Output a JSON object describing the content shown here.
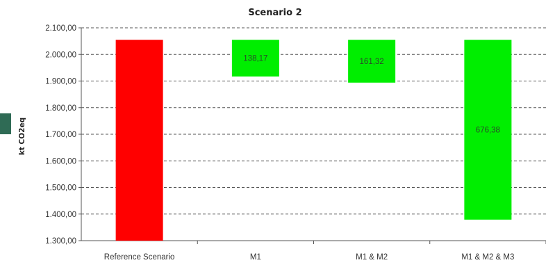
{
  "chart_data": {
    "type": "bar",
    "title": "Scenario 2",
    "ylabel": "kt CO2eq",
    "xlabel": "",
    "ylim": [
      1300,
      2100
    ],
    "yticks": [
      "1.300,00",
      "1.400,00",
      "1.500,00",
      "1.600,00",
      "1.700,00",
      "1.800,00",
      "1.900,00",
      "2.000,00",
      "2.100,00"
    ],
    "ytick_values": [
      1300,
      1400,
      1500,
      1600,
      1700,
      1800,
      1900,
      2000,
      2100
    ],
    "grid": true,
    "categories": [
      "Reference Scenario",
      "M1",
      "M1 & M2",
      "M1 & M2 & M3"
    ],
    "bars": [
      {
        "bottom": 1300,
        "top": 2055,
        "color": "#ff0000",
        "label": ""
      },
      {
        "bottom": 1917,
        "top": 2055,
        "color": "#00ee00",
        "label": "138,17"
      },
      {
        "bottom": 1894,
        "top": 2055,
        "color": "#00ee00",
        "label": "161,32"
      },
      {
        "bottom": 1379,
        "top": 2055,
        "color": "#00ee00",
        "label": "676,38"
      }
    ]
  }
}
